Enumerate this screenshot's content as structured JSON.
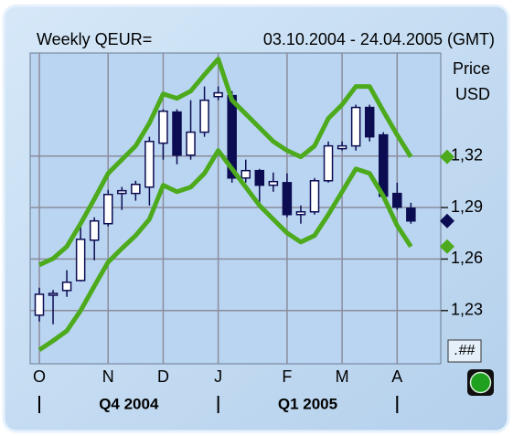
{
  "chart_data": {
    "type": "candlestick",
    "title": "Weekly QEUR=",
    "subtitle": "03.10.2004 - 24.04.2005 (GMT)",
    "y_axis_label": [
      "Price",
      "USD"
    ],
    "categories": [
      "O",
      null,
      null,
      null,
      null,
      "N",
      null,
      null,
      null,
      "D",
      null,
      null,
      null,
      "J",
      null,
      null,
      null,
      null,
      "F",
      null,
      null,
      null,
      "M",
      null,
      null,
      null,
      "A",
      null
    ],
    "period_labels": [
      "Q4 2004",
      "Q1 2005"
    ],
    "open": [
      1.2273,
      1.239,
      1.2417,
      1.2475,
      1.271,
      1.2806,
      1.2982,
      1.2982,
      1.3019,
      1.3275,
      1.3456,
      1.3205,
      1.3339,
      1.3546,
      1.3552,
      1.3072,
      1.3115,
      1.303,
      1.3045,
      1.2859,
      1.2875,
      1.3056,
      1.3243,
      1.3259,
      1.3483,
      1.3323,
      1.2982,
      1.2896
    ],
    "high": [
      1.2433,
      1.242,
      1.2535,
      1.2805,
      1.2843,
      1.3003,
      1.302,
      1.3056,
      1.3312,
      1.3472,
      1.3472,
      1.3525,
      1.3605,
      1.3605,
      1.3578,
      1.3179,
      1.3125,
      1.3104,
      1.3099,
      1.2912,
      1.3072,
      1.3285,
      1.3285,
      1.3499,
      1.3499,
      1.3339,
      1.3045,
      1.2928
    ],
    "low": [
      1.2236,
      1.222,
      1.238,
      1.247,
      1.2593,
      1.279,
      1.2886,
      1.294,
      1.2912,
      1.3179,
      1.3152,
      1.3179,
      1.3312,
      1.3525,
      1.3045,
      1.3045,
      1.2928,
      1.2992,
      1.2843,
      1.2806,
      1.2859,
      1.3045,
      1.3232,
      1.3232,
      1.3285,
      1.294,
      1.2886,
      1.2806
    ],
    "close": [
      1.2395,
      1.24,
      1.2465,
      1.2715,
      1.2822,
      1.2976,
      1.2998,
      1.3035,
      1.3285,
      1.3461,
      1.3205,
      1.3339,
      1.3525,
      1.3568,
      1.3072,
      1.3115,
      1.303,
      1.3051,
      1.2859,
      1.2875,
      1.3056,
      1.3259,
      1.3259,
      1.3483,
      1.3312,
      1.2966,
      1.2902,
      1.2822
    ],
    "up_color": "#ffffff",
    "down_color": "#0c0c52",
    "envelope": {
      "color": "#4caa1c",
      "upper": [
        1.2566,
        1.2603,
        1.2673,
        1.2806,
        1.295,
        1.3099,
        1.3179,
        1.3259,
        1.3392,
        1.3562,
        1.3536,
        1.3578,
        1.3674,
        1.3765,
        1.3525,
        1.3445,
        1.3365,
        1.3285,
        1.3232,
        1.3195,
        1.3259,
        1.3419,
        1.3499,
        1.3605,
        1.3605,
        1.3461,
        1.3323,
        1.3195
      ],
      "lower": [
        1.2071,
        1.2124,
        1.2182,
        1.23,
        1.2443,
        1.2582,
        1.2662,
        1.2737,
        1.2832,
        1.303,
        1.2992,
        1.3019,
        1.3099,
        1.3232,
        1.3125,
        1.3019,
        1.2912,
        1.2832,
        1.2752,
        1.2699,
        1.2737,
        1.2859,
        1.2992,
        1.3125,
        1.3099,
        1.2966,
        1.2795,
        1.2673
      ]
    },
    "ylim": [
      1.199,
      1.38
    ],
    "yticks": [
      {
        "value": 1.23,
        "label": "1,23"
      },
      {
        "value": 1.26,
        "label": "1,26"
      },
      {
        "value": 1.29,
        "label": "1,29"
      },
      {
        "value": 1.32,
        "label": "1,32"
      }
    ],
    "grid": true,
    "format_button": ".##"
  }
}
